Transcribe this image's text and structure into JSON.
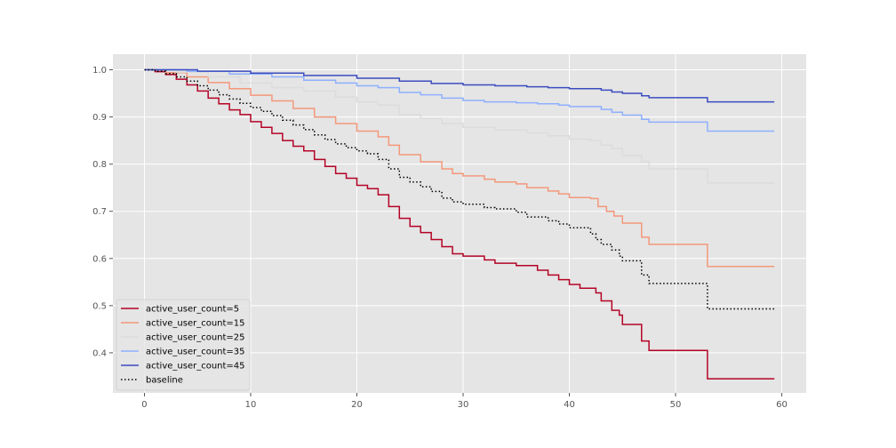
{
  "chart_data": {
    "type": "line",
    "title": "",
    "xlabel": "",
    "ylabel": "",
    "xlim": [
      -2.97,
      62.3
    ],
    "ylim": [
      0.315,
      1.033
    ],
    "x_ticks": [
      0,
      10,
      20,
      30,
      40,
      50,
      60
    ],
    "x_tick_labels": [
      "0",
      "10",
      "20",
      "30",
      "40",
      "50",
      "60"
    ],
    "y_ticks": [
      0.4,
      0.5,
      0.6,
      0.7,
      0.8,
      0.9,
      1.0
    ],
    "y_tick_labels": [
      "0.4",
      "0.5",
      "0.6",
      "0.7",
      "0.8",
      "0.9",
      "1.0"
    ],
    "grid": true,
    "legend_position": "lower-left",
    "background_color": "#e5e5e5",
    "series": [
      {
        "name": "active_user_count=5",
        "color": "#b40426",
        "style": "step",
        "points": [
          [
            0,
            1.0
          ],
          [
            1,
            0.996
          ],
          [
            2,
            0.99
          ],
          [
            3,
            0.98
          ],
          [
            4,
            0.968
          ],
          [
            5,
            0.955
          ],
          [
            6,
            0.94
          ],
          [
            7,
            0.928
          ],
          [
            8,
            0.915
          ],
          [
            9,
            0.905
          ],
          [
            10,
            0.89
          ],
          [
            11,
            0.878
          ],
          [
            12,
            0.865
          ],
          [
            13,
            0.85
          ],
          [
            14,
            0.838
          ],
          [
            15,
            0.828
          ],
          [
            16,
            0.81
          ],
          [
            17,
            0.795
          ],
          [
            18,
            0.78
          ],
          [
            19,
            0.77
          ],
          [
            20,
            0.755
          ],
          [
            21,
            0.748
          ],
          [
            22,
            0.735
          ],
          [
            23,
            0.71
          ],
          [
            24,
            0.685
          ],
          [
            25,
            0.668
          ],
          [
            26,
            0.655
          ],
          [
            27,
            0.64
          ],
          [
            28,
            0.625
          ],
          [
            29,
            0.61
          ],
          [
            30,
            0.605
          ],
          [
            32,
            0.597
          ],
          [
            33,
            0.59
          ],
          [
            35,
            0.585
          ],
          [
            37,
            0.575
          ],
          [
            38,
            0.565
          ],
          [
            39,
            0.555
          ],
          [
            40,
            0.545
          ],
          [
            41,
            0.537
          ],
          [
            42.5,
            0.527
          ],
          [
            43,
            0.51
          ],
          [
            44,
            0.49
          ],
          [
            44.7,
            0.48
          ],
          [
            45,
            0.46
          ],
          [
            46.8,
            0.425
          ],
          [
            47.5,
            0.405
          ],
          [
            53,
            0.345
          ],
          [
            59.3,
            0.345
          ]
        ]
      },
      {
        "name": "active_user_count=15",
        "color": "#f4987a",
        "style": "step",
        "points": [
          [
            0,
            1.0
          ],
          [
            2,
            0.994
          ],
          [
            4,
            0.985
          ],
          [
            6,
            0.973
          ],
          [
            8,
            0.96
          ],
          [
            10,
            0.946
          ],
          [
            12,
            0.934
          ],
          [
            14,
            0.918
          ],
          [
            16,
            0.9
          ],
          [
            18,
            0.886
          ],
          [
            20,
            0.87
          ],
          [
            22,
            0.858
          ],
          [
            23,
            0.84
          ],
          [
            24,
            0.82
          ],
          [
            26,
            0.805
          ],
          [
            28,
            0.79
          ],
          [
            29,
            0.78
          ],
          [
            30,
            0.775
          ],
          [
            32,
            0.768
          ],
          [
            33,
            0.762
          ],
          [
            35,
            0.758
          ],
          [
            36,
            0.75
          ],
          [
            38,
            0.743
          ],
          [
            39,
            0.737
          ],
          [
            40,
            0.729
          ],
          [
            42,
            0.727
          ],
          [
            42.7,
            0.71
          ],
          [
            43.5,
            0.7
          ],
          [
            44.2,
            0.69
          ],
          [
            45,
            0.675
          ],
          [
            46.8,
            0.645
          ],
          [
            47.5,
            0.63
          ],
          [
            53,
            0.583
          ],
          [
            59.3,
            0.583
          ]
        ]
      },
      {
        "name": "active_user_count=25",
        "color": "#dddcdc",
        "style": "step",
        "points": [
          [
            0,
            1.0
          ],
          [
            3,
            0.995
          ],
          [
            6,
            0.985
          ],
          [
            9,
            0.972
          ],
          [
            12,
            0.962
          ],
          [
            15,
            0.955
          ],
          [
            18,
            0.942
          ],
          [
            20,
            0.932
          ],
          [
            22,
            0.925
          ],
          [
            24,
            0.905
          ],
          [
            26,
            0.897
          ],
          [
            28,
            0.886
          ],
          [
            30,
            0.878
          ],
          [
            33,
            0.872
          ],
          [
            36,
            0.866
          ],
          [
            38,
            0.86
          ],
          [
            40,
            0.853
          ],
          [
            42,
            0.85
          ],
          [
            43,
            0.84
          ],
          [
            44,
            0.833
          ],
          [
            45,
            0.818
          ],
          [
            46.8,
            0.805
          ],
          [
            47.5,
            0.79
          ],
          [
            53,
            0.76
          ],
          [
            59.3,
            0.76
          ]
        ]
      },
      {
        "name": "active_user_count=35",
        "color": "#8db0fe",
        "style": "step",
        "points": [
          [
            0,
            1.0
          ],
          [
            4,
            0.997
          ],
          [
            8,
            0.991
          ],
          [
            12,
            0.985
          ],
          [
            15,
            0.978
          ],
          [
            18,
            0.972
          ],
          [
            20,
            0.966
          ],
          [
            22,
            0.962
          ],
          [
            24,
            0.952
          ],
          [
            26,
            0.947
          ],
          [
            28,
            0.94
          ],
          [
            30,
            0.935
          ],
          [
            32,
            0.932
          ],
          [
            35,
            0.93
          ],
          [
            37,
            0.928
          ],
          [
            39,
            0.925
          ],
          [
            40,
            0.922
          ],
          [
            42,
            0.922
          ],
          [
            43,
            0.916
          ],
          [
            44,
            0.91
          ],
          [
            45,
            0.904
          ],
          [
            46.8,
            0.895
          ],
          [
            47.5,
            0.889
          ],
          [
            53,
            0.87
          ],
          [
            59.3,
            0.87
          ]
        ]
      },
      {
        "name": "active_user_count=45",
        "color": "#3b4cc0",
        "style": "step",
        "points": [
          [
            0,
            1.0
          ],
          [
            5,
            0.997
          ],
          [
            10,
            0.993
          ],
          [
            15,
            0.988
          ],
          [
            20,
            0.982
          ],
          [
            24,
            0.976
          ],
          [
            27,
            0.971
          ],
          [
            30,
            0.968
          ],
          [
            33,
            0.966
          ],
          [
            36,
            0.964
          ],
          [
            38,
            0.962
          ],
          [
            40,
            0.96
          ],
          [
            42,
            0.96
          ],
          [
            43,
            0.957
          ],
          [
            44,
            0.953
          ],
          [
            45,
            0.95
          ],
          [
            46.8,
            0.945
          ],
          [
            47.5,
            0.941
          ],
          [
            53,
            0.932
          ],
          [
            59.3,
            0.932
          ]
        ]
      },
      {
        "name": "baseline",
        "color": "#000000",
        "style": "step-dotted",
        "points": [
          [
            0,
            1.0
          ],
          [
            1,
            0.997
          ],
          [
            2,
            0.992
          ],
          [
            3,
            0.985
          ],
          [
            4,
            0.976
          ],
          [
            5,
            0.966
          ],
          [
            6,
            0.957
          ],
          [
            7,
            0.947
          ],
          [
            8,
            0.938
          ],
          [
            9,
            0.929
          ],
          [
            10,
            0.92
          ],
          [
            11,
            0.912
          ],
          [
            12,
            0.903
          ],
          [
            13,
            0.893
          ],
          [
            14,
            0.883
          ],
          [
            15,
            0.873
          ],
          [
            16,
            0.862
          ],
          [
            17,
            0.852
          ],
          [
            18,
            0.843
          ],
          [
            19,
            0.835
          ],
          [
            20,
            0.828
          ],
          [
            21,
            0.822
          ],
          [
            22,
            0.81
          ],
          [
            23,
            0.79
          ],
          [
            24,
            0.772
          ],
          [
            25,
            0.762
          ],
          [
            26,
            0.752
          ],
          [
            27,
            0.742
          ],
          [
            28,
            0.728
          ],
          [
            29,
            0.72
          ],
          [
            30,
            0.715
          ],
          [
            32,
            0.708
          ],
          [
            33,
            0.705
          ],
          [
            35,
            0.698
          ],
          [
            36,
            0.688
          ],
          [
            38,
            0.68
          ],
          [
            39,
            0.673
          ],
          [
            40,
            0.665
          ],
          [
            42,
            0.652
          ],
          [
            42.5,
            0.64
          ],
          [
            43,
            0.63
          ],
          [
            44,
            0.618
          ],
          [
            44.7,
            0.605
          ],
          [
            45,
            0.595
          ],
          [
            46.8,
            0.565
          ],
          [
            47.5,
            0.547
          ],
          [
            53,
            0.493
          ],
          [
            59.3,
            0.493
          ]
        ]
      }
    ]
  }
}
